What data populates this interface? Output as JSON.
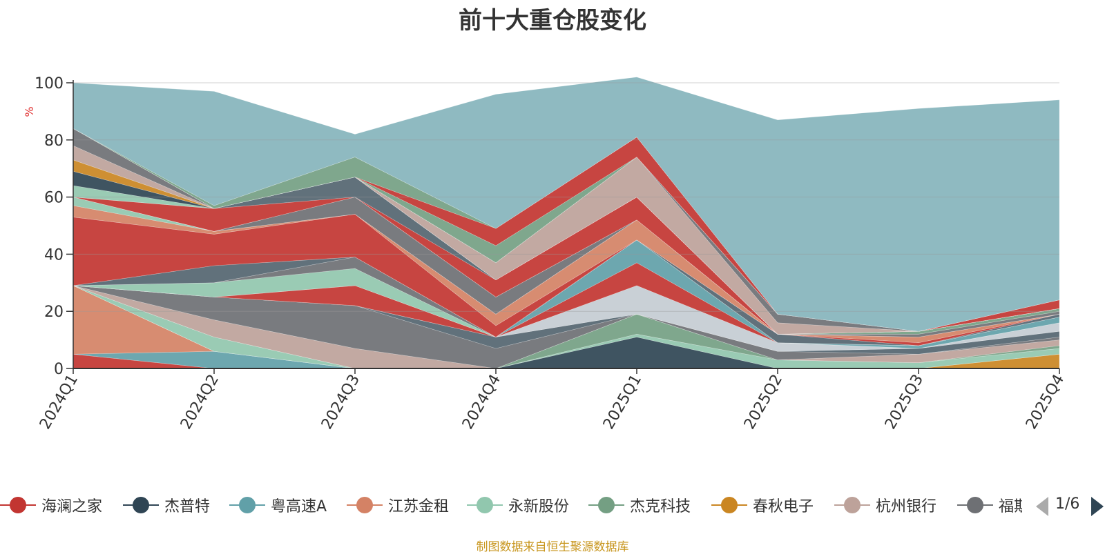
{
  "title": "前十大重仓股变化",
  "footer": "制图数据来自恒生聚源数据库",
  "pager": {
    "text": "1/6"
  },
  "colors": {
    "axis": "#333333",
    "grid": "#999999",
    "unit": "#e03030",
    "footer": "#c8961e",
    "remainder": "#8fbac1"
  },
  "legend": [
    {
      "name": "海澜之家",
      "color": "#c23531"
    },
    {
      "name": "杰普特",
      "color": "#2f4554"
    },
    {
      "name": "粤高速A",
      "color": "#61a0a8"
    },
    {
      "name": "江苏金租",
      "color": "#d48265"
    },
    {
      "name": "永新股份",
      "color": "#91c7ae"
    },
    {
      "name": "杰克科技",
      "color": "#749f83"
    },
    {
      "name": "春秋电子",
      "color": "#ca8622"
    },
    {
      "name": "杭州银行",
      "color": "#bda29a"
    },
    {
      "name": "福斯",
      "color": "#6e7074"
    }
  ],
  "chart_data": {
    "type": "area",
    "stacked": true,
    "title": "前十大重仓股变化",
    "ylabel": "%",
    "ylim": [
      0,
      100
    ],
    "yticks": [
      0,
      20,
      40,
      60,
      80,
      100
    ],
    "grid": true,
    "legend_position": "bottom",
    "categories": [
      "2024Q1",
      "2024Q2",
      "2024Q3",
      "2024Q4",
      "2025Q1",
      "2025Q2",
      "2025Q3",
      "2025Q4"
    ],
    "series": [
      {
        "name": "",
        "color": "#c23531",
        "values": [
          5,
          0,
          0,
          0,
          0,
          0,
          0,
          0
        ]
      },
      {
        "name": "",
        "color": "#61a0a8",
        "values": [
          0,
          6,
          0,
          0,
          0,
          0,
          0,
          0
        ]
      },
      {
        "name": "",
        "color": "#d48265",
        "values": [
          24,
          0,
          0,
          0,
          0,
          0,
          0,
          0
        ]
      },
      {
        "name": "",
        "color": "#ca8622",
        "values": [
          0,
          0,
          0,
          0,
          0,
          0,
          0,
          5
        ]
      },
      {
        "name": "",
        "color": "#2f4554",
        "values": [
          0,
          0,
          0,
          0,
          11,
          0,
          0,
          0
        ]
      },
      {
        "name": "",
        "color": "#91c7ae",
        "values": [
          0,
          5,
          0,
          0,
          1,
          3,
          2,
          2
        ]
      },
      {
        "name": "",
        "color": "#749f83",
        "values": [
          0,
          0,
          0,
          0,
          7,
          0,
          0,
          1
        ]
      },
      {
        "name": "",
        "color": "#bda29a",
        "values": [
          0,
          6,
          7,
          0,
          0,
          0,
          3,
          2
        ]
      },
      {
        "name": "",
        "color": "#6e7074",
        "values": [
          0,
          8,
          15,
          7,
          0,
          3,
          0,
          1
        ]
      },
      {
        "name": "",
        "color": "#546570",
        "values": [
          0,
          0,
          0,
          4,
          0,
          0,
          2,
          2
        ]
      },
      {
        "name": "",
        "color": "#c4ccd3",
        "values": [
          0,
          0,
          0,
          0,
          10,
          3,
          0,
          3
        ]
      },
      {
        "name": "",
        "color": "#c23531",
        "values": [
          0,
          0,
          7,
          0,
          8,
          0,
          0,
          0
        ]
      },
      {
        "name": "",
        "color": "#61a0a8",
        "values": [
          0,
          0,
          0,
          0,
          8,
          0,
          1,
          2
        ]
      },
      {
        "name": "",
        "color": "#91c7ae",
        "values": [
          0,
          5,
          6,
          0,
          0,
          0,
          0,
          0
        ]
      },
      {
        "name": "",
        "color": "#6e7074",
        "values": [
          0,
          0,
          4,
          0,
          0,
          0,
          0,
          0
        ]
      },
      {
        "name": "",
        "color": "#546570",
        "values": [
          0,
          6,
          0,
          0,
          0,
          3,
          0,
          1
        ]
      },
      {
        "name": "",
        "color": "#c23531",
        "values": [
          24,
          11,
          15,
          4,
          0,
          0,
          1,
          0
        ]
      },
      {
        "name": "",
        "color": "#d48265",
        "values": [
          4,
          1,
          0,
          4,
          7,
          0,
          2,
          0
        ]
      },
      {
        "name": "",
        "color": "#91c7ae",
        "values": [
          3,
          0,
          0,
          0,
          0,
          0,
          0,
          0
        ]
      },
      {
        "name": "",
        "color": "#6e7074",
        "values": [
          0,
          0,
          6,
          6,
          0,
          0,
          1,
          1
        ]
      },
      {
        "name": "",
        "color": "#749f83",
        "values": [
          0,
          0,
          0,
          0,
          0,
          0,
          1,
          1
        ]
      },
      {
        "name": "",
        "color": "#c23531",
        "values": [
          0,
          8,
          0,
          6,
          8,
          0,
          0,
          0
        ]
      },
      {
        "name": "",
        "color": "#546570",
        "values": [
          0,
          0,
          7,
          0,
          0,
          0,
          0,
          0
        ]
      },
      {
        "name": "",
        "color": "#91c7ae",
        "values": [
          4,
          0,
          0,
          0,
          0,
          0,
          0,
          0
        ]
      },
      {
        "name": "",
        "color": "#2f4554",
        "values": [
          5,
          0,
          0,
          0,
          0,
          0,
          0,
          0
        ]
      },
      {
        "name": "",
        "color": "#ca8622",
        "values": [
          4,
          0,
          0,
          0,
          0,
          0,
          0,
          0
        ]
      },
      {
        "name": "",
        "color": "#bda29a",
        "values": [
          5,
          0,
          0,
          6,
          14,
          4,
          0,
          0
        ]
      },
      {
        "name": "",
        "color": "#6e7074",
        "values": [
          6,
          0,
          0,
          0,
          0,
          3,
          0,
          0
        ]
      },
      {
        "name": "",
        "color": "#c23531",
        "values": [
          0,
          0,
          0,
          0,
          0,
          0,
          0,
          3
        ]
      },
      {
        "name": "",
        "color": "#749f83",
        "values": [
          0,
          0,
          0,
          6,
          0,
          0,
          0,
          0
        ]
      },
      {
        "name": "",
        "color": "#c23531",
        "values": [
          0,
          0,
          0,
          6,
          7,
          0,
          0,
          0
        ]
      },
      {
        "name": "",
        "color": "#749f83",
        "values": [
          0,
          1,
          7,
          0,
          0,
          0,
          0,
          0
        ]
      },
      {
        "name": "",
        "color": "#8fbac1",
        "values": [
          16,
          40,
          8,
          47,
          21,
          68,
          78,
          70
        ]
      }
    ]
  }
}
